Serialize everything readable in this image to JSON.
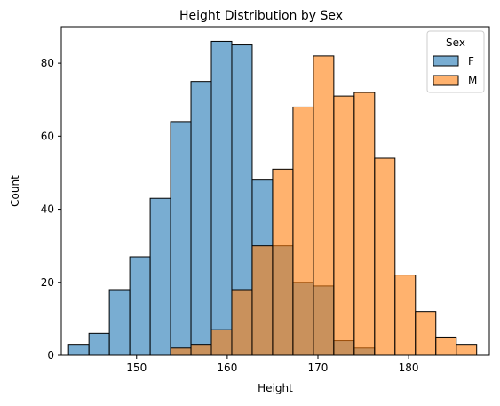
{
  "chart_data": {
    "type": "bar",
    "title": "Height Distribution by Sex",
    "xlabel": "Height",
    "ylabel": "Count",
    "xlim": [
      141.7,
      188.9
    ],
    "ylim": [
      0,
      90
    ],
    "x_ticks": [
      150,
      160,
      170,
      180
    ],
    "y_ticks": [
      0,
      20,
      40,
      60,
      80
    ],
    "bin_width": 2.25,
    "bin_edges": [
      142.5,
      144.75,
      147.0,
      149.25,
      151.5,
      153.75,
      156.0,
      158.25,
      160.5,
      162.75,
      165.0,
      167.25,
      169.5,
      171.75,
      174.0,
      176.25,
      178.5,
      180.75,
      183.0,
      185.25,
      187.5
    ],
    "legend": {
      "title": "Sex",
      "position": "top-right"
    },
    "series": [
      {
        "name": "F",
        "color": "#1f77b4",
        "values": [
          3,
          6,
          18,
          27,
          43,
          64,
          75,
          86,
          85,
          48,
          30,
          20,
          19,
          4,
          2,
          0,
          0,
          0,
          0,
          0
        ]
      },
      {
        "name": "M",
        "color": "#ff7f0e",
        "values": [
          0,
          0,
          0,
          0,
          0,
          2,
          3,
          7,
          18,
          30,
          51,
          68,
          82,
          71,
          72,
          54,
          22,
          12,
          5,
          3
        ]
      }
    ],
    "grid": false
  }
}
